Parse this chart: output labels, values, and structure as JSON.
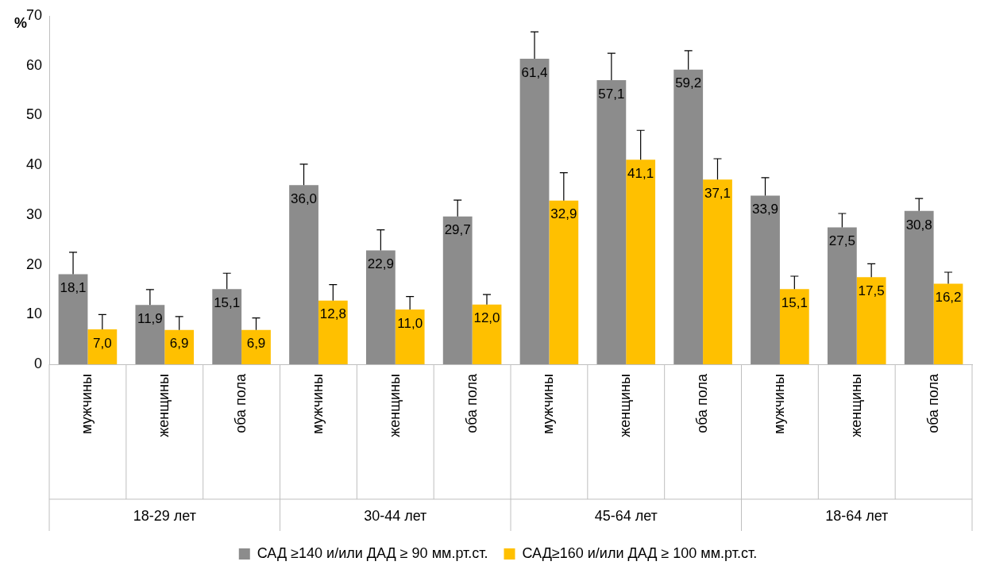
{
  "chart_data": {
    "type": "bar",
    "ylabel": "%",
    "categories": [
      "мужчины",
      "женщины",
      "оба пола",
      "мужчины",
      "женщины",
      "оба пола",
      "мужчины",
      "женщины",
      "оба пола",
      "мужчины",
      "женщины",
      "оба пола"
    ],
    "annotations": [
      "18-29 лет",
      "30-44 лет",
      "45-64 лет",
      "18-64 лет"
    ],
    "series": [
      {
        "name": "САД ≥140 и/или ДАД ≥ 90 мм.рт.ст.",
        "color": "#8c8c8c",
        "values": [
          18.1,
          11.9,
          15.1,
          36.0,
          22.9,
          29.7,
          61.4,
          57.1,
          59.2,
          33.9,
          27.5,
          30.8
        ],
        "value_labels": [
          "18,1",
          "11,9",
          "15,1",
          "36,0",
          "22,9",
          "29,7",
          "61,4",
          "57,1",
          "59,2",
          "33,9",
          "27,5",
          "30,8"
        ],
        "errors": [
          [
            18.1,
            22.5
          ],
          [
            11.9,
            15.0
          ],
          [
            15.1,
            18.3
          ],
          [
            36.0,
            40.2
          ],
          [
            22.9,
            27.0
          ],
          [
            29.7,
            33.0
          ],
          [
            61.4,
            66.8
          ],
          [
            57.1,
            62.5
          ],
          [
            59.2,
            63.0
          ],
          [
            33.9,
            37.5
          ],
          [
            27.5,
            30.3
          ],
          [
            30.8,
            33.3
          ]
        ]
      },
      {
        "name": "САД≥160 и/или ДАД ≥ 100 мм.рт.ст.",
        "color": "#ffc000",
        "values": [
          7.0,
          6.9,
          6.9,
          12.8,
          11.0,
          12.0,
          32.9,
          41.1,
          37.1,
          15.1,
          17.5,
          16.2
        ],
        "value_labels": [
          "7,0",
          "6,9",
          "6,9",
          "12,8",
          "11,0",
          "12,0",
          "32,9",
          "41,1",
          "37,1",
          "15,1",
          "17,5",
          "16,2"
        ],
        "errors": [
          [
            7.0,
            10.0
          ],
          [
            6.9,
            9.6
          ],
          [
            6.9,
            9.3
          ],
          [
            12.8,
            16.0
          ],
          [
            11.0,
            13.6
          ],
          [
            12.0,
            14.0
          ],
          [
            32.9,
            38.5
          ],
          [
            41.1,
            47.0
          ],
          [
            37.1,
            41.3
          ],
          [
            15.1,
            17.7
          ],
          [
            17.5,
            20.2
          ],
          [
            16.2,
            18.5
          ]
        ]
      }
    ],
    "ylim": [
      0,
      70
    ],
    "yticks": [
      0,
      10,
      20,
      30,
      40,
      50,
      60,
      70
    ],
    "grid": false,
    "legend": "bottom"
  }
}
